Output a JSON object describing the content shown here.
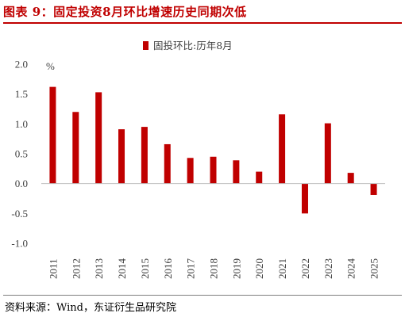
{
  "title": "图表 9：固定投资8月环比增速历史同期次低",
  "source": "资料来源：Wind，东证衍生品研究院",
  "colors": {
    "accent": "#c00000",
    "bar": "#c00000",
    "axis": "#595959",
    "text": "#404040"
  },
  "chart_data": {
    "type": "bar",
    "categories": [
      "2011",
      "2012",
      "2013",
      "2014",
      "2015",
      "2016",
      "2017",
      "2018",
      "2019",
      "2020",
      "2021",
      "2022",
      "2023",
      "2024",
      "2025"
    ],
    "series": [
      {
        "name": "固投环比:历年8月",
        "values": [
          1.62,
          1.2,
          1.53,
          0.91,
          0.95,
          0.66,
          0.43,
          0.45,
          0.39,
          0.2,
          1.16,
          -0.5,
          1.01,
          0.18,
          -0.19
        ]
      }
    ],
    "ylim": [
      -1.0,
      2.0
    ],
    "yticks": [
      "2.0",
      "1.5",
      "1.0",
      "0.5",
      "0.0",
      "-0.5",
      "-1.0"
    ],
    "yunit": "%",
    "legend_position": "top-center",
    "grid": false
  }
}
